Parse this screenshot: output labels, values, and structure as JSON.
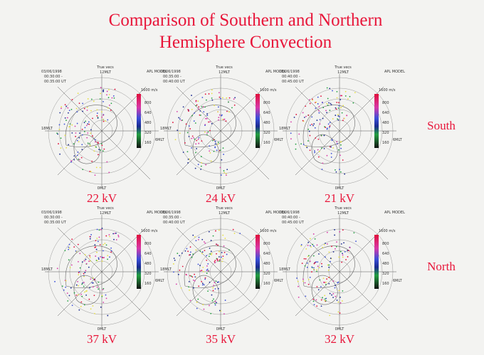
{
  "header": {
    "title_lines": [
      "Comparison of Southern and Northern",
      "Hemisphere Convection"
    ]
  },
  "panel_common": {
    "vector_label": "True vecs",
    "noon": "12MLT",
    "model": "APL MODEL",
    "speed_max": "1600 m/s",
    "scale": [
      800,
      640,
      480,
      320,
      160
    ],
    "dusk": "18MLT",
    "dawn": "6MLT",
    "midnight": "0MLT"
  },
  "rows": [
    {
      "label": "South",
      "panels": [
        {
          "date": "03/06/1998",
          "time_start": "00:30:00 -",
          "time_end": "00:35:00 UT",
          "potential": "22 kV"
        },
        {
          "date": "03/06/1998",
          "time_start": "00:35:00 -",
          "time_end": "00:40:00 UT",
          "potential": "24 kV"
        },
        {
          "date": "03/06/1998",
          "time_start": "00:40:00 -",
          "time_end": "00:45:00 UT",
          "potential": "21 kV"
        }
      ]
    },
    {
      "label": "North",
      "panels": [
        {
          "date": "03/06/1998",
          "time_start": "00:30:00 -",
          "time_end": "00:35:00 UT",
          "potential": "37 kV"
        },
        {
          "date": "03/06/1998",
          "time_start": "00:35:00 -",
          "time_end": "00:40:00 UT",
          "potential": "35 kV"
        },
        {
          "date": "03/06/1998",
          "time_start": "00:40:00 -",
          "time_end": "00:45:00 UT",
          "potential": "32 kV"
        }
      ]
    }
  ]
}
